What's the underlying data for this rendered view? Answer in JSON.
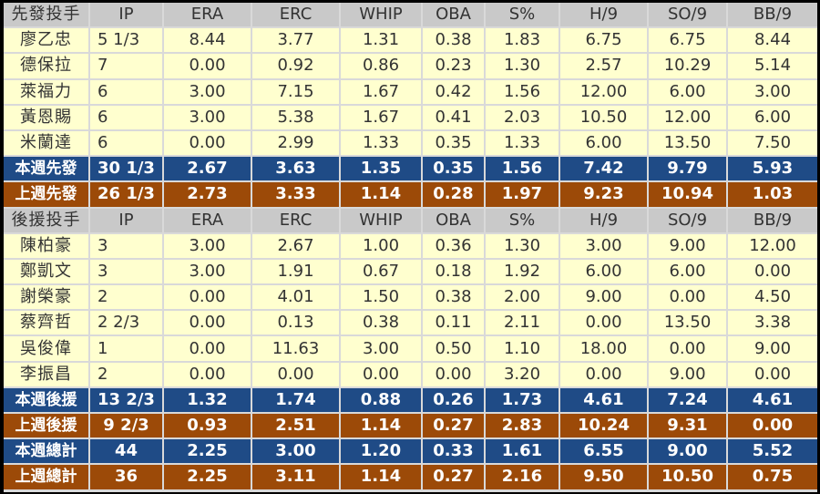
{
  "colors": {
    "header": "#c9c9c9",
    "player": "#ffffcf",
    "this_week": "#1f4b86",
    "last_week": "#9c4a08"
  },
  "columns": [
    "IP",
    "ERA",
    "ERC",
    "WHIP",
    "OBA",
    "S%",
    "H/9",
    "SO/9",
    "BB/9"
  ],
  "sections": [
    {
      "header": "先發投手",
      "players": [
        [
          "廖乙忠",
          "5 1/3",
          "8.44",
          "3.77",
          "1.31",
          "0.38",
          "1.83",
          "6.75",
          "6.75",
          "8.44"
        ],
        [
          "德保拉",
          "7",
          "0.00",
          "0.92",
          "0.86",
          "0.23",
          "1.30",
          "2.57",
          "10.29",
          "5.14"
        ],
        [
          "萊福力",
          "6",
          "3.00",
          "7.15",
          "1.67",
          "0.42",
          "1.56",
          "12.00",
          "6.00",
          "3.00"
        ],
        [
          "黃恩賜",
          "6",
          "3.00",
          "5.38",
          "1.67",
          "0.41",
          "2.03",
          "10.50",
          "12.00",
          "6.00"
        ],
        [
          "米蘭達",
          "6",
          "0.00",
          "2.99",
          "1.33",
          "0.35",
          "1.33",
          "6.00",
          "13.50",
          "7.50"
        ]
      ],
      "summaries": [
        {
          "type": "cur",
          "cells": [
            "本週先發",
            "30 1/3",
            "2.67",
            "3.63",
            "1.35",
            "0.35",
            "1.56",
            "7.42",
            "9.79",
            "5.93"
          ]
        },
        {
          "type": "prev",
          "cells": [
            "上週先發",
            "26 1/3",
            "2.73",
            "3.33",
            "1.14",
            "0.28",
            "1.97",
            "9.23",
            "10.94",
            "1.03"
          ]
        }
      ]
    },
    {
      "header": "後援投手",
      "players": [
        [
          "陳柏豪",
          "3",
          "3.00",
          "2.67",
          "1.00",
          "0.36",
          "1.30",
          "3.00",
          "9.00",
          "12.00"
        ],
        [
          "鄭凱文",
          "3",
          "3.00",
          "1.91",
          "0.67",
          "0.18",
          "1.92",
          "6.00",
          "6.00",
          "0.00"
        ],
        [
          "謝榮豪",
          "2",
          "0.00",
          "4.01",
          "1.50",
          "0.38",
          "2.00",
          "9.00",
          "0.00",
          "4.50"
        ],
        [
          "蔡齊哲",
          "2 2/3",
          "0.00",
          "0.13",
          "0.38",
          "0.11",
          "2.11",
          "0.00",
          "13.50",
          "3.38"
        ],
        [
          "吳俊偉",
          "1",
          "0.00",
          "11.63",
          "3.00",
          "0.50",
          "1.10",
          "18.00",
          "0.00",
          "9.00"
        ],
        [
          "李振昌",
          "2",
          "0.00",
          "0.00",
          "0.00",
          "0.00",
          "3.20",
          "0.00",
          "9.00",
          "0.00"
        ]
      ],
      "summaries": [
        {
          "type": "cur",
          "cells": [
            "本週後援",
            "13 2/3",
            "1.32",
            "1.74",
            "0.88",
            "0.26",
            "1.73",
            "4.61",
            "7.24",
            "4.61"
          ]
        },
        {
          "type": "prev",
          "cells": [
            "上週後援",
            "9 2/3",
            "0.93",
            "2.51",
            "1.14",
            "0.27",
            "2.83",
            "10.24",
            "9.31",
            "0.00"
          ]
        },
        {
          "type": "cur",
          "cells": [
            "本週總計",
            "44",
            "2.25",
            "3.00",
            "1.20",
            "0.33",
            "1.61",
            "6.55",
            "9.00",
            "5.52"
          ]
        },
        {
          "type": "prev",
          "cells": [
            "上週總計",
            "36",
            "2.25",
            "3.11",
            "1.14",
            "0.27",
            "2.16",
            "9.50",
            "10.50",
            "0.75"
          ]
        }
      ]
    }
  ]
}
